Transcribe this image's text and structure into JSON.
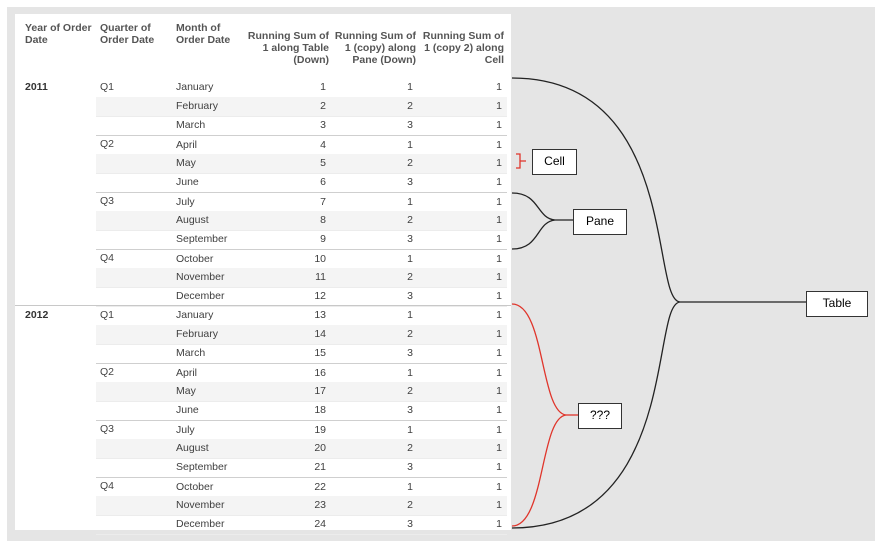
{
  "headers": {
    "year": [
      "Year of Order",
      "Date"
    ],
    "quarter": [
      "Quarter of",
      "Order Date"
    ],
    "month": [
      "Month of",
      "Order Date"
    ],
    "col1": [
      "Running Sum of",
      "1 along Table",
      "(Down)"
    ],
    "col2": [
      "Running Sum of",
      "1 (copy) along",
      "Pane (Down)"
    ],
    "col3": [
      "Running Sum of",
      "1 (copy 2) along",
      "Cell"
    ]
  },
  "years": [
    {
      "label": "2011",
      "quarters": [
        {
          "label": "Q1",
          "months": [
            {
              "name": "January",
              "v1": "1",
              "v2": "1",
              "v3": "1"
            },
            {
              "name": "February",
              "v1": "2",
              "v2": "2",
              "v3": "1"
            },
            {
              "name": "March",
              "v1": "3",
              "v2": "3",
              "v3": "1"
            }
          ]
        },
        {
          "label": "Q2",
          "months": [
            {
              "name": "April",
              "v1": "4",
              "v2": "1",
              "v3": "1"
            },
            {
              "name": "May",
              "v1": "5",
              "v2": "2",
              "v3": "1"
            },
            {
              "name": "June",
              "v1": "6",
              "v2": "3",
              "v3": "1"
            }
          ]
        },
        {
          "label": "Q3",
          "months": [
            {
              "name": "July",
              "v1": "7",
              "v2": "1",
              "v3": "1"
            },
            {
              "name": "August",
              "v1": "8",
              "v2": "2",
              "v3": "1"
            },
            {
              "name": "September",
              "v1": "9",
              "v2": "3",
              "v3": "1"
            }
          ]
        },
        {
          "label": "Q4",
          "months": [
            {
              "name": "October",
              "v1": "10",
              "v2": "1",
              "v3": "1"
            },
            {
              "name": "November",
              "v1": "11",
              "v2": "2",
              "v3": "1"
            },
            {
              "name": "December",
              "v1": "12",
              "v2": "3",
              "v3": "1"
            }
          ]
        }
      ]
    },
    {
      "label": "2012",
      "quarters": [
        {
          "label": "Q1",
          "months": [
            {
              "name": "January",
              "v1": "13",
              "v2": "1",
              "v3": "1"
            },
            {
              "name": "February",
              "v1": "14",
              "v2": "2",
              "v3": "1"
            },
            {
              "name": "March",
              "v1": "15",
              "v2": "3",
              "v3": "1"
            }
          ]
        },
        {
          "label": "Q2",
          "months": [
            {
              "name": "April",
              "v1": "16",
              "v2": "1",
              "v3": "1"
            },
            {
              "name": "May",
              "v1": "17",
              "v2": "2",
              "v3": "1"
            },
            {
              "name": "June",
              "v1": "18",
              "v2": "3",
              "v3": "1"
            }
          ]
        },
        {
          "label": "Q3",
          "months": [
            {
              "name": "July",
              "v1": "19",
              "v2": "1",
              "v3": "1"
            },
            {
              "name": "August",
              "v1": "20",
              "v2": "2",
              "v3": "1"
            },
            {
              "name": "September",
              "v1": "21",
              "v2": "3",
              "v3": "1"
            }
          ]
        },
        {
          "label": "Q4",
          "months": [
            {
              "name": "October",
              "v1": "22",
              "v2": "1",
              "v3": "1"
            },
            {
              "name": "November",
              "v1": "23",
              "v2": "2",
              "v3": "1"
            },
            {
              "name": "December",
              "v1": "24",
              "v2": "3",
              "v3": "1"
            }
          ]
        }
      ]
    }
  ],
  "annotations": {
    "cell": "Cell",
    "pane": "Pane",
    "table": "Table",
    "unknown": "???"
  },
  "colors": {
    "brace_black": "#222222",
    "brace_red": "#e0352b",
    "canvas_bg": "#e5e5e5"
  }
}
